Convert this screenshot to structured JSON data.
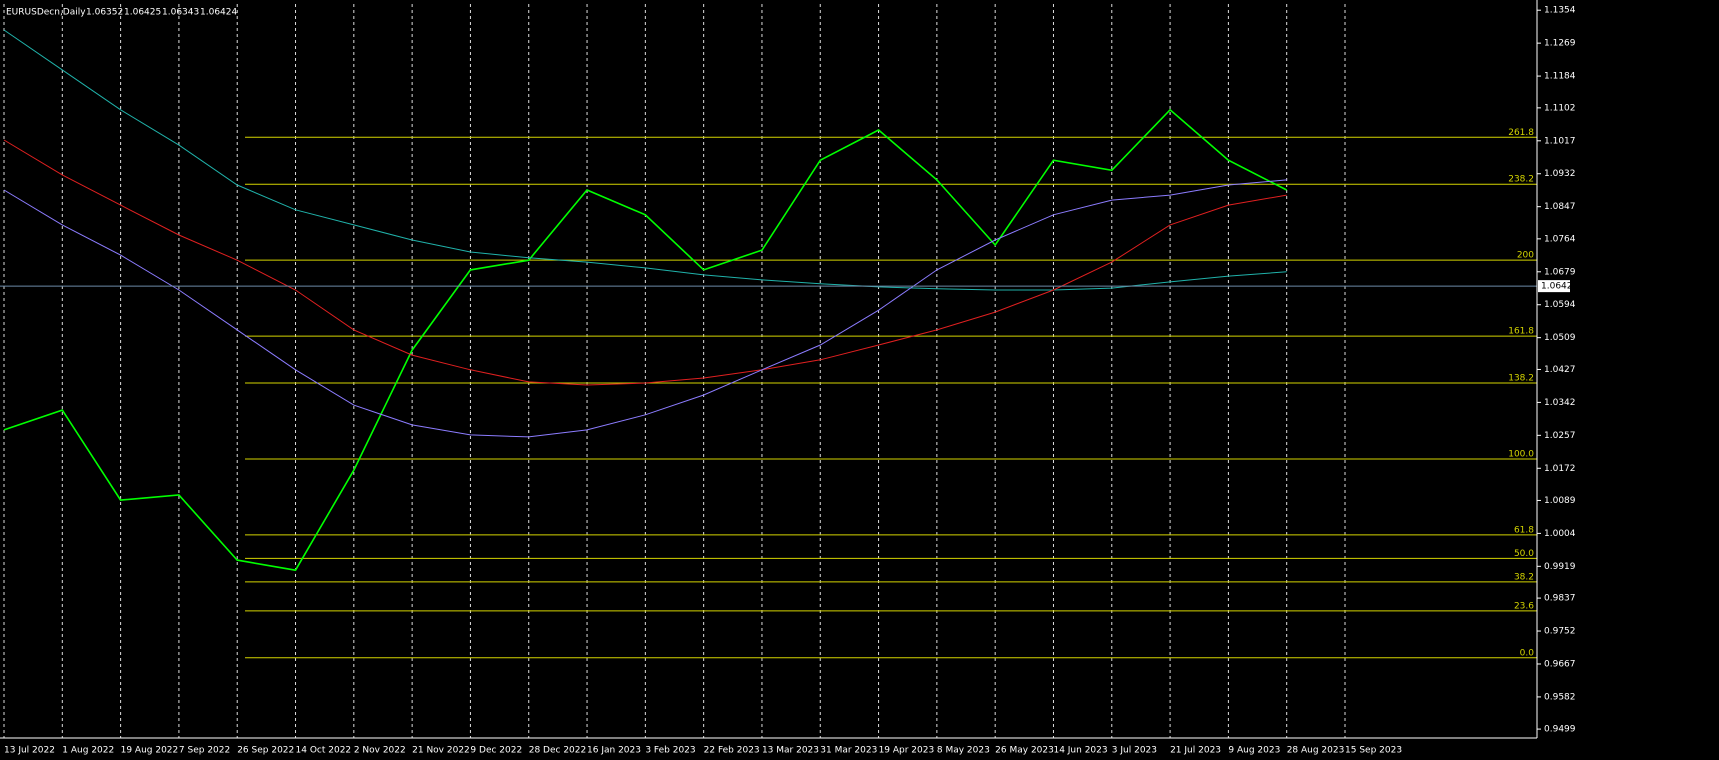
{
  "chart_data": {
    "type": "line",
    "title": "EURUSDecn,Daily",
    "ohlc": [
      1.06352,
      1.06425,
      1.06343,
      1.06424
    ],
    "categories": [
      "13 Jul 2022",
      "1 Aug 2022",
      "19 Aug 2022",
      "7 Sep 2022",
      "26 Sep 2022",
      "14 Oct 2022",
      "2 Nov 2022",
      "21 Nov 2022",
      "9 Dec 2022",
      "28 Dec 2022",
      "16 Jan 2023",
      "3 Feb 2023",
      "22 Feb 2023",
      "13 Mar 2023",
      "31 Mar 2023",
      "19 Apr 2023",
      "8 May 2023",
      "26 May 2023",
      "14 Jun 2023",
      "3 Jul 2023",
      "21 Jul 2023",
      "9 Aug 2023",
      "28 Aug 2023",
      "15 Sep 2023"
    ],
    "series": [
      {
        "name": "EURUSDecn",
        "color": "#00ff00",
        "values": [
          1.0271,
          1.0322,
          1.009,
          1.0103,
          0.9935,
          0.9909,
          1.0167,
          1.0477,
          1.0684,
          1.0709,
          1.089,
          1.0826,
          1.0684,
          1.0735,
          1.0967,
          1.1045,
          1.0916,
          1.0748,
          1.0967,
          1.0941,
          1.1097,
          1.0967,
          1.089,
          null
        ]
      },
      {
        "color": "#20b2aa",
        "values": [
          1.1303,
          1.12,
          1.1097,
          1.1006,
          1.0903,
          1.0839,
          1.08,
          1.0761,
          1.073,
          1.0715,
          1.0704,
          1.0689,
          1.0671,
          1.0658,
          1.0648,
          1.064,
          1.0635,
          1.0632,
          1.0632,
          1.0637,
          1.0653,
          1.0668,
          1.0679,
          null
        ]
      },
      {
        "color": "#e02020",
        "values": [
          1.1019,
          1.0929,
          1.0851,
          1.0774,
          1.0709,
          1.0632,
          1.0529,
          1.0464,
          1.0426,
          1.0395,
          1.0387,
          1.0392,
          1.0405,
          1.0426,
          1.0452,
          1.049,
          1.0529,
          1.0575,
          1.0632,
          1.0704,
          1.08,
          1.0851,
          1.0877,
          null
        ]
      },
      {
        "color": "#8c7cff",
        "values": [
          1.089,
          1.08,
          1.0722,
          1.0632,
          1.0529,
          1.0426,
          1.0335,
          1.0284,
          1.0258,
          1.0253,
          1.0271,
          1.031,
          1.0361,
          1.0426,
          1.049,
          1.058,
          1.0684,
          1.0761,
          1.0826,
          1.0864,
          1.0877,
          1.0903,
          1.0916,
          null
        ]
      }
    ],
    "last_price": 1.0642,
    "fibo": {
      "color": "#d4d400",
      "price_0": 0.9683,
      "price_100": 1.0196,
      "levels": [
        261.8,
        238.2,
        200,
        161.8,
        138.2,
        {
          "value": 100,
          "label": "100.0"
        },
        61.8,
        {
          "value": 50,
          "label": "50.0"
        },
        38.2,
        23.6,
        {
          "value": 0,
          "label": "0.0"
        }
      ]
    },
    "ylim": [
      0.9476,
      1.137
    ],
    "yticks": [
      1.1354,
      1.1269,
      1.1184,
      1.1102,
      1.1017,
      1.0932,
      1.0847,
      1.0764,
      1.0679,
      1.0594,
      1.0509,
      1.0427,
      1.0342,
      1.0257,
      1.0172,
      1.0089,
      1.0004,
      0.9919,
      0.9837,
      0.9752,
      0.9667,
      0.9582,
      0.9499
    ],
    "grid": true
  }
}
